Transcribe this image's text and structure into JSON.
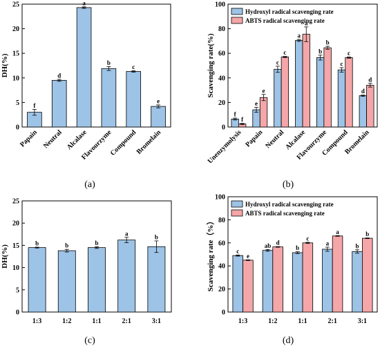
{
  "colors": {
    "bar_blue": "#9dc3e6",
    "bar_pink": "#f4a6a8",
    "axis": "#000000"
  },
  "chart_data": [
    {
      "id": "a",
      "type": "bar",
      "caption": "(a)",
      "categories": [
        "Papain",
        "Neutral",
        "Alcalase",
        "Flavourzyme",
        "Compound",
        "Bromelain"
      ],
      "series": [
        {
          "values": [
            3.0,
            9.5,
            24.3,
            11.9,
            11.3,
            4.2
          ],
          "errors": [
            0.6,
            0.2,
            0.15,
            0.4,
            0.15,
            0.3
          ],
          "labels": [
            "f",
            "d",
            "a",
            "b",
            "c",
            "e"
          ],
          "color": "#9dc3e6"
        }
      ],
      "ylabel": "DH(%)",
      "ylim": [
        0,
        25
      ],
      "yticks": [
        0,
        5,
        10,
        15,
        20,
        25
      ],
      "rotate_x": true,
      "legend": []
    },
    {
      "id": "b",
      "type": "bar",
      "caption": "(b)",
      "categories": [
        "Unenzymolysis",
        "Papain",
        "Neutral",
        "Alcalase",
        "Flavourzyme",
        "Compound",
        "Bromelain"
      ],
      "series": [
        {
          "name": "Hydroxyl radical scavenging rate",
          "values": [
            6.5,
            14.0,
            47.0,
            70.5,
            56.5,
            46.5,
            25.5
          ],
          "errors": [
            0.8,
            2.0,
            2.5,
            0.8,
            2.0,
            1.8,
            0.5
          ],
          "labels": [
            "f",
            "e",
            "c",
            "a",
            "b",
            "c",
            "d"
          ],
          "color": "#9dc3e6"
        },
        {
          "name": "ABTS radical scavenging rate",
          "values": [
            2.5,
            24.0,
            57.0,
            75.5,
            64.5,
            56.5,
            34.0
          ],
          "errors": [
            0.5,
            2.5,
            0.5,
            6.0,
            1.2,
            0.5,
            1.5
          ],
          "labels": [
            "f",
            "e",
            "c",
            "a",
            "b",
            "c",
            "d"
          ],
          "color": "#f4a6a8"
        }
      ],
      "ylabel": "Scavenging rate(%)",
      "ylim": [
        0,
        100
      ],
      "yticks": [
        0,
        20,
        40,
        60,
        80,
        100
      ],
      "rotate_x": true,
      "legend": [
        "Hydroxyl radical scavenging rate",
        "ABTS radical scavenging rate"
      ]
    },
    {
      "id": "c",
      "type": "bar",
      "caption": "(c)",
      "categories": [
        "1:3",
        "1:2",
        "1:1",
        "2:1",
        "3:1"
      ],
      "series": [
        {
          "values": [
            14.5,
            13.8,
            14.5,
            16.2,
            14.7
          ],
          "errors": [
            0.1,
            0.3,
            0.2,
            0.6,
            1.3
          ],
          "labels": [
            "b",
            "b",
            "b",
            "a",
            "b"
          ],
          "color": "#9dc3e6"
        }
      ],
      "ylabel": "DH(%)",
      "ylim": [
        0,
        25
      ],
      "yticks": [
        0,
        5,
        10,
        15,
        20,
        25
      ],
      "rotate_x": false,
      "legend": []
    },
    {
      "id": "d",
      "type": "bar",
      "caption": "(d)",
      "categories": [
        "1:3",
        "1:2",
        "1:1",
        "2:1",
        "3:1"
      ],
      "series": [
        {
          "name": "Hydroxyl radical scavenging rate",
          "values": [
            49.0,
            53.5,
            51.5,
            54.5,
            52.5
          ],
          "errors": [
            0.5,
            0.8,
            0.8,
            1.8,
            1.5
          ],
          "labels": [
            "c",
            "ab",
            "b",
            "a",
            "b"
          ],
          "color": "#9dc3e6"
        },
        {
          "name": "ABTS radical scavenging rate",
          "values": [
            45.0,
            56.5,
            60.0,
            66.0,
            64.0
          ],
          "errors": [
            0.3,
            0.3,
            0.5,
            0.3,
            0.3
          ],
          "labels": [
            "e",
            "d",
            "c",
            "a",
            "b"
          ],
          "color": "#f4a6a8"
        }
      ],
      "ylabel": "Scavenging rate（%）",
      "ylim": [
        0,
        100
      ],
      "yticks": [
        0,
        20,
        40,
        60,
        80,
        100
      ],
      "rotate_x": false,
      "legend": [
        "Hydroxyl radical scavenging rate",
        "ABTS radical scavenging rate"
      ]
    }
  ]
}
